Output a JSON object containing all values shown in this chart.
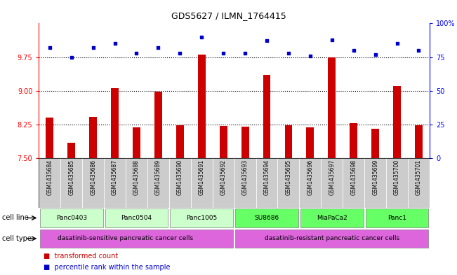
{
  "title": "GDS5627 / ILMN_1764415",
  "samples": [
    "GSM1435684",
    "GSM1435685",
    "GSM1435686",
    "GSM1435687",
    "GSM1435688",
    "GSM1435689",
    "GSM1435690",
    "GSM1435691",
    "GSM1435692",
    "GSM1435693",
    "GSM1435694",
    "GSM1435695",
    "GSM1435696",
    "GSM1435697",
    "GSM1435698",
    "GSM1435699",
    "GSM1435700",
    "GSM1435701"
  ],
  "bar_values": [
    8.4,
    7.85,
    8.42,
    9.05,
    8.18,
    8.98,
    8.23,
    9.8,
    8.22,
    8.2,
    9.35,
    8.23,
    8.18,
    9.75,
    8.28,
    8.15,
    9.1,
    8.23
  ],
  "dot_values": [
    82,
    75,
    82,
    85,
    78,
    82,
    78,
    90,
    78,
    78,
    87,
    78,
    76,
    88,
    80,
    77,
    85,
    80
  ],
  "ylim_left": [
    7.5,
    10.5
  ],
  "ylim_right": [
    0,
    100
  ],
  "yticks_left": [
    7.5,
    8.25,
    9,
    9.75
  ],
  "yticks_right": [
    0,
    25,
    50,
    75,
    100
  ],
  "ytick_labels_right": [
    "0",
    "25",
    "50",
    "75",
    "100%"
  ],
  "bar_color": "#cc0000",
  "dot_color": "#0000cc",
  "cell_lines": [
    {
      "name": "Panc0403",
      "start": 0,
      "end": 2,
      "color": "#ccffcc"
    },
    {
      "name": "Panc0504",
      "start": 3,
      "end": 5,
      "color": "#ccffcc"
    },
    {
      "name": "Panc1005",
      "start": 6,
      "end": 8,
      "color": "#ccffcc"
    },
    {
      "name": "SU8686",
      "start": 9,
      "end": 11,
      "color": "#66ff66"
    },
    {
      "name": "MiaPaCa2",
      "start": 12,
      "end": 14,
      "color": "#66ff66"
    },
    {
      "name": "Panc1",
      "start": 15,
      "end": 17,
      "color": "#66ff66"
    }
  ],
  "cell_types": [
    {
      "name": "dasatinib-sensitive pancreatic cancer cells",
      "start": 0,
      "end": 8,
      "color": "#dd66dd"
    },
    {
      "name": "dasatinib-resistant pancreatic cancer cells",
      "start": 9,
      "end": 17,
      "color": "#dd66dd"
    }
  ],
  "bg_color": "#ffffff",
  "sample_bg_color": "#cccccc",
  "plot_bg_color": "#ffffff",
  "grid_color": "#000000"
}
